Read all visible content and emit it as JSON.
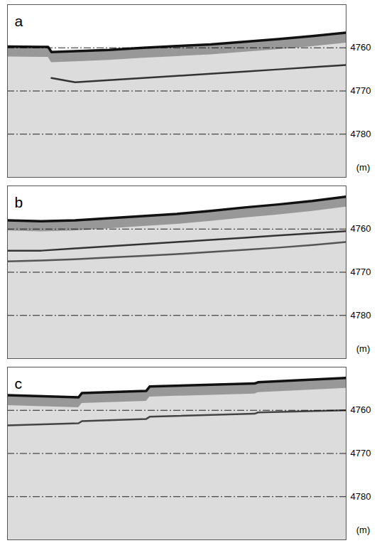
{
  "chart_data": [
    {
      "type": "line",
      "title": "a",
      "y_label": "(m)",
      "ylim": [
        4750,
        4790
      ],
      "yticks": [
        4760,
        4770,
        4780
      ],
      "grid": true,
      "tick_labels": "y",
      "x": [
        0,
        0.1,
        0.12,
        0.13,
        0.2,
        0.3,
        0.4,
        0.5,
        0.6,
        0.7,
        0.8,
        0.9,
        1.0
      ],
      "series": [
        {
          "type": "area",
          "color": "#111111",
          "line_style": "solid",
          "values": [
            4759.7,
            4759.8,
            4759.8,
            4761,
            4760.8,
            4760.5,
            4760,
            4759.6,
            4759.2,
            4758.6,
            4758,
            4757.3,
            4756.5
          ]
        },
        {
          "type": "line",
          "color": "#333333",
          "line_style": "solid",
          "values": [
            null,
            null,
            null,
            4767,
            4768,
            4767.5,
            4767,
            4766.5,
            4766,
            4765.5,
            4765,
            4764.5,
            4764
          ]
        }
      ]
    },
    {
      "type": "line",
      "title": "b",
      "y_label": "(m)",
      "ylim": [
        4750,
        4790
      ],
      "yticks": [
        4760,
        4770,
        4780
      ],
      "grid": true,
      "tick_labels": "y",
      "x": [
        0,
        0.1,
        0.2,
        0.3,
        0.4,
        0.5,
        0.6,
        0.7,
        0.8,
        0.9,
        1.0
      ],
      "series": [
        {
          "type": "area",
          "color": "#111111",
          "line_style": "solid",
          "values": [
            4758,
            4758.2,
            4758,
            4757.5,
            4757,
            4756.5,
            4755.8,
            4755,
            4754.3,
            4753.5,
            4752.5
          ]
        },
        {
          "type": "line",
          "color": "#333333",
          "line_style": "solid",
          "values": [
            4765,
            4765,
            4764.5,
            4764,
            4763.5,
            4763,
            4762.5,
            4762,
            4761.5,
            4761,
            4760.5
          ]
        },
        {
          "type": "line",
          "color": "#555555",
          "line_style": "solid",
          "values": [
            4767.5,
            4767.3,
            4767,
            4766.6,
            4766.2,
            4765.8,
            4765.3,
            4764.8,
            4764.3,
            4763.7,
            4763
          ]
        }
      ]
    },
    {
      "type": "line",
      "title": "c",
      "y_label": "(m)",
      "ylim": [
        4750,
        4790
      ],
      "yticks": [
        4760,
        4770,
        4780
      ],
      "grid": true,
      "tick_labels": "y",
      "x": [
        0,
        0.21,
        0.22,
        0.41,
        0.42,
        0.73,
        0.74,
        1.0
      ],
      "series": [
        {
          "type": "area",
          "color": "#111111",
          "line_style": "solid",
          "values": [
            4756.5,
            4757,
            4756,
            4755.5,
            4754.5,
            4753.8,
            4753.5,
            4752.5
          ]
        },
        {
          "type": "line",
          "color": "#444444",
          "line_style": "solid",
          "values": [
            4763.5,
            4763,
            4762.5,
            4762,
            4761.5,
            4760.8,
            4760.5,
            4760
          ]
        }
      ]
    }
  ]
}
